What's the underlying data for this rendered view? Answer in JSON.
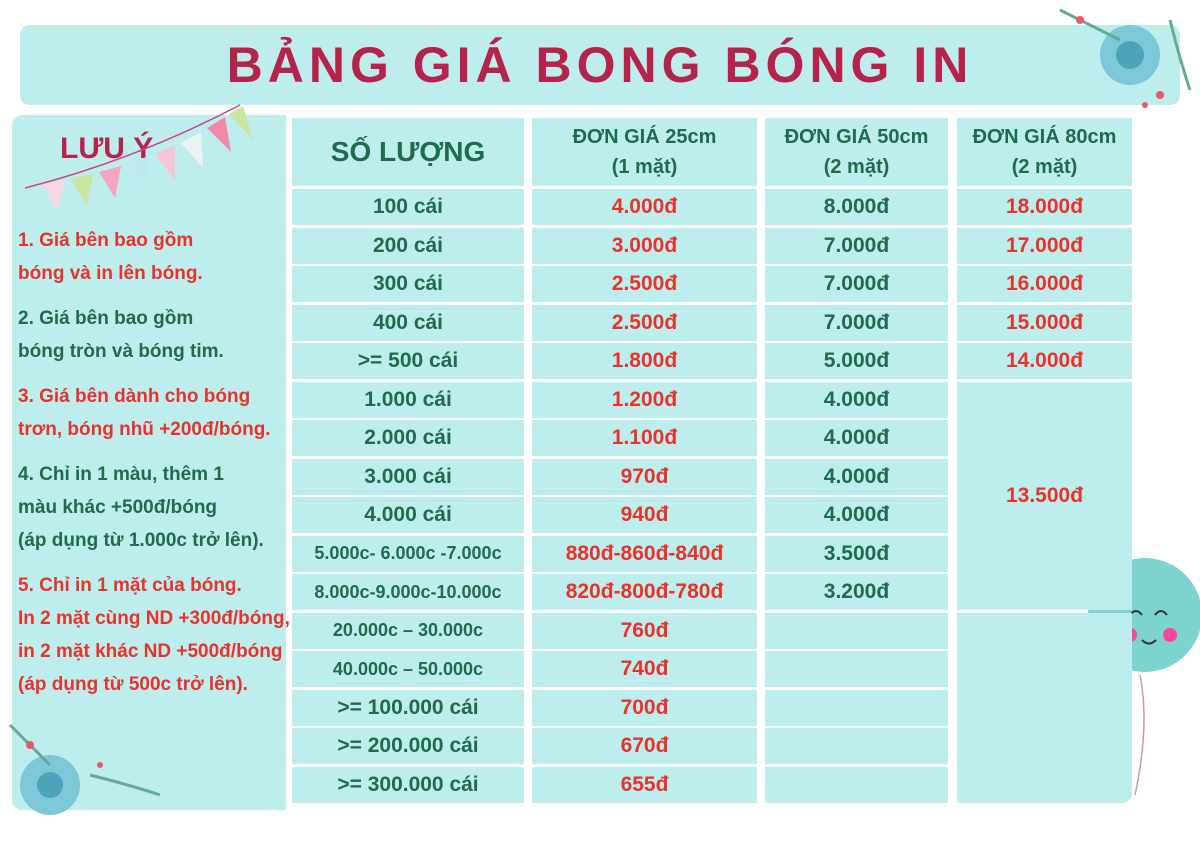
{
  "title": "BẢNG GIÁ BONG BÓNG IN",
  "notes": {
    "heading": "LƯU Ý",
    "items": [
      {
        "lines": [
          "1. Giá bên bao gồm",
          "bóng và in lên bóng."
        ]
      },
      {
        "lines": [
          "2. Giá bên bao gồm",
          "bóng tròn và bóng tim."
        ]
      },
      {
        "lines": [
          "3. Giá bên dành cho bóng",
          "trơn, bóng nhũ +200đ/bóng."
        ]
      },
      {
        "lines": [
          "4. Chỉ in 1 màu, thêm 1",
          "màu khác +500đ/bóng",
          "(áp dụng từ 1.000c trở lên)."
        ]
      },
      {
        "lines": [
          "5. Chỉ in 1 mặt của bóng.",
          "In 2 mặt cùng ND +300đ/bóng,",
          "in 2 mặt khác ND +500đ/bóng",
          "(áp dụng từ 500c trở lên)."
        ]
      }
    ]
  },
  "table": {
    "headers": [
      {
        "lines": [
          "SỐ LƯỢNG"
        ]
      },
      {
        "lines": [
          "ĐƠN GIÁ 25cm",
          "(1 mặt)"
        ]
      },
      {
        "lines": [
          "ĐƠN GIÁ 50cm",
          "(2 mặt)"
        ]
      },
      {
        "lines": [
          "ĐƠN GIÁ 80cm",
          "(2 mặt)"
        ]
      }
    ],
    "rows": [
      [
        "100 cái",
        "4.000đ",
        "8.000đ"
      ],
      [
        "200 cái",
        "3.000đ",
        "7.000đ"
      ],
      [
        "300 cái",
        "2.500đ",
        "7.000đ"
      ],
      [
        "400 cái",
        "2.500đ",
        "7.000đ"
      ],
      [
        ">= 500 cái",
        "1.800đ",
        "5.000đ"
      ],
      [
        "1.000 cái",
        "1.200đ",
        "4.000đ"
      ],
      [
        "2.000 cái",
        "1.100đ",
        "4.000đ"
      ],
      [
        "3.000 cái",
        "970đ",
        "4.000đ"
      ],
      [
        "4.000 cái",
        "940đ",
        "4.000đ"
      ],
      [
        "5.000c- 6.000c -7.000c",
        "880đ-860đ-840đ",
        "3.500đ"
      ],
      [
        "8.000c-9.000c-10.000c",
        "820đ-800đ-780đ",
        "3.200đ"
      ],
      [
        "20.000c – 30.000c",
        "760đ",
        null
      ],
      [
        "40.000c – 50.000c",
        "740đ",
        null
      ],
      [
        ">= 100.000 cái",
        "700đ",
        null
      ],
      [
        ">= 200.000 cái",
        "670đ",
        null
      ],
      [
        ">= 300.000 cái",
        "655đ",
        null
      ]
    ],
    "price_80cm": [
      "18.000đ",
      "17.000đ",
      "16.000đ",
      "15.000đ",
      "14.000đ",
      "13.500đ"
    ]
  }
}
